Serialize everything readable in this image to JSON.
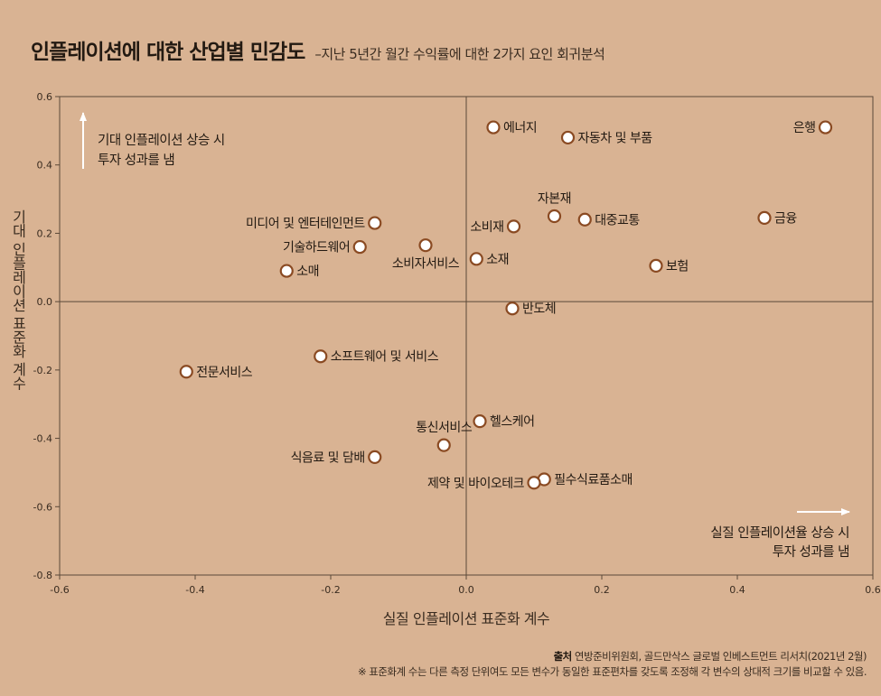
{
  "header": {
    "title": "인플레이션에 대한 산업별 민감도",
    "subtitle": "–지난 5년간 월간 수익률에 대한 2가지 요인 회귀분석"
  },
  "chart_data": {
    "type": "scatter",
    "xlabel": "실질 인플레이션 표준화 계수",
    "ylabel": "기대 인플레이션 표준화 계수",
    "xlim": [
      -0.6,
      0.6
    ],
    "ylim": [
      -0.8,
      0.6
    ],
    "xticks": [
      "-0.6",
      "-0.4",
      "-0.2",
      "0.0",
      "0.2",
      "0.4",
      "0.6"
    ],
    "yticks": [
      "-0.8",
      "-0.6",
      "-0.4",
      "-0.2",
      "0.0",
      "0.2",
      "0.4",
      "0.6"
    ],
    "grid": false,
    "marker_color": "#8a4a22",
    "points": [
      {
        "label": "에너지",
        "x": 0.04,
        "y": 0.51,
        "pos": "right"
      },
      {
        "label": "자동차 및 부품",
        "x": 0.15,
        "y": 0.48,
        "pos": "right"
      },
      {
        "label": "은행",
        "x": 0.53,
        "y": 0.51,
        "pos": "left"
      },
      {
        "label": "자본재",
        "x": 0.13,
        "y": 0.25,
        "pos": "above"
      },
      {
        "label": "대중교통",
        "x": 0.175,
        "y": 0.24,
        "pos": "right"
      },
      {
        "label": "금융",
        "x": 0.44,
        "y": 0.245,
        "pos": "right"
      },
      {
        "label": "소비재",
        "x": 0.07,
        "y": 0.22,
        "pos": "left"
      },
      {
        "label": "미디어 및 엔터테인먼트",
        "x": -0.135,
        "y": 0.23,
        "pos": "left"
      },
      {
        "label": "기술하드웨어",
        "x": -0.157,
        "y": 0.16,
        "pos": "left"
      },
      {
        "label": "소비자서비스",
        "x": -0.06,
        "y": 0.165,
        "pos": "below"
      },
      {
        "label": "소재",
        "x": 0.015,
        "y": 0.125,
        "pos": "right"
      },
      {
        "label": "소매",
        "x": -0.265,
        "y": 0.09,
        "pos": "right"
      },
      {
        "label": "보험",
        "x": 0.28,
        "y": 0.105,
        "pos": "right"
      },
      {
        "label": "반도체",
        "x": 0.068,
        "y": -0.02,
        "pos": "right"
      },
      {
        "label": "소프트웨어 및 서비스",
        "x": -0.215,
        "y": -0.16,
        "pos": "right"
      },
      {
        "label": "전문서비스",
        "x": -0.413,
        "y": -0.205,
        "pos": "right"
      },
      {
        "label": "헬스케어",
        "x": 0.02,
        "y": -0.35,
        "pos": "right"
      },
      {
        "label": "통신서비스",
        "x": -0.033,
        "y": -0.42,
        "pos": "above"
      },
      {
        "label": "식음료 및 담배",
        "x": -0.135,
        "y": -0.455,
        "pos": "left"
      },
      {
        "label": "필수식료품소매",
        "x": 0.115,
        "y": -0.52,
        "pos": "right"
      },
      {
        "label": "제약 및 바이오테크",
        "x": 0.1,
        "y": -0.53,
        "pos": "left"
      }
    ],
    "annotations": {
      "upper_left": [
        "기대 인플레이션 상승 시",
        "투자 성과를 냄"
      ],
      "lower_right": [
        "실질 인플레이션율 상승 시",
        "투자 성과를 냄"
      ]
    }
  },
  "footer": {
    "source_label": "출처",
    "source_text": "연방준비위원회, 골드만삭스 글로벌 인베스트먼트 리서치(2021년 2월)",
    "note": "※ 표준화계 수는 다른 측정 단위여도 모든 변수가 동일한 표준편차를 갖도록 조정해 각 변수의 상대적 크기를 비교할 수 있음."
  }
}
